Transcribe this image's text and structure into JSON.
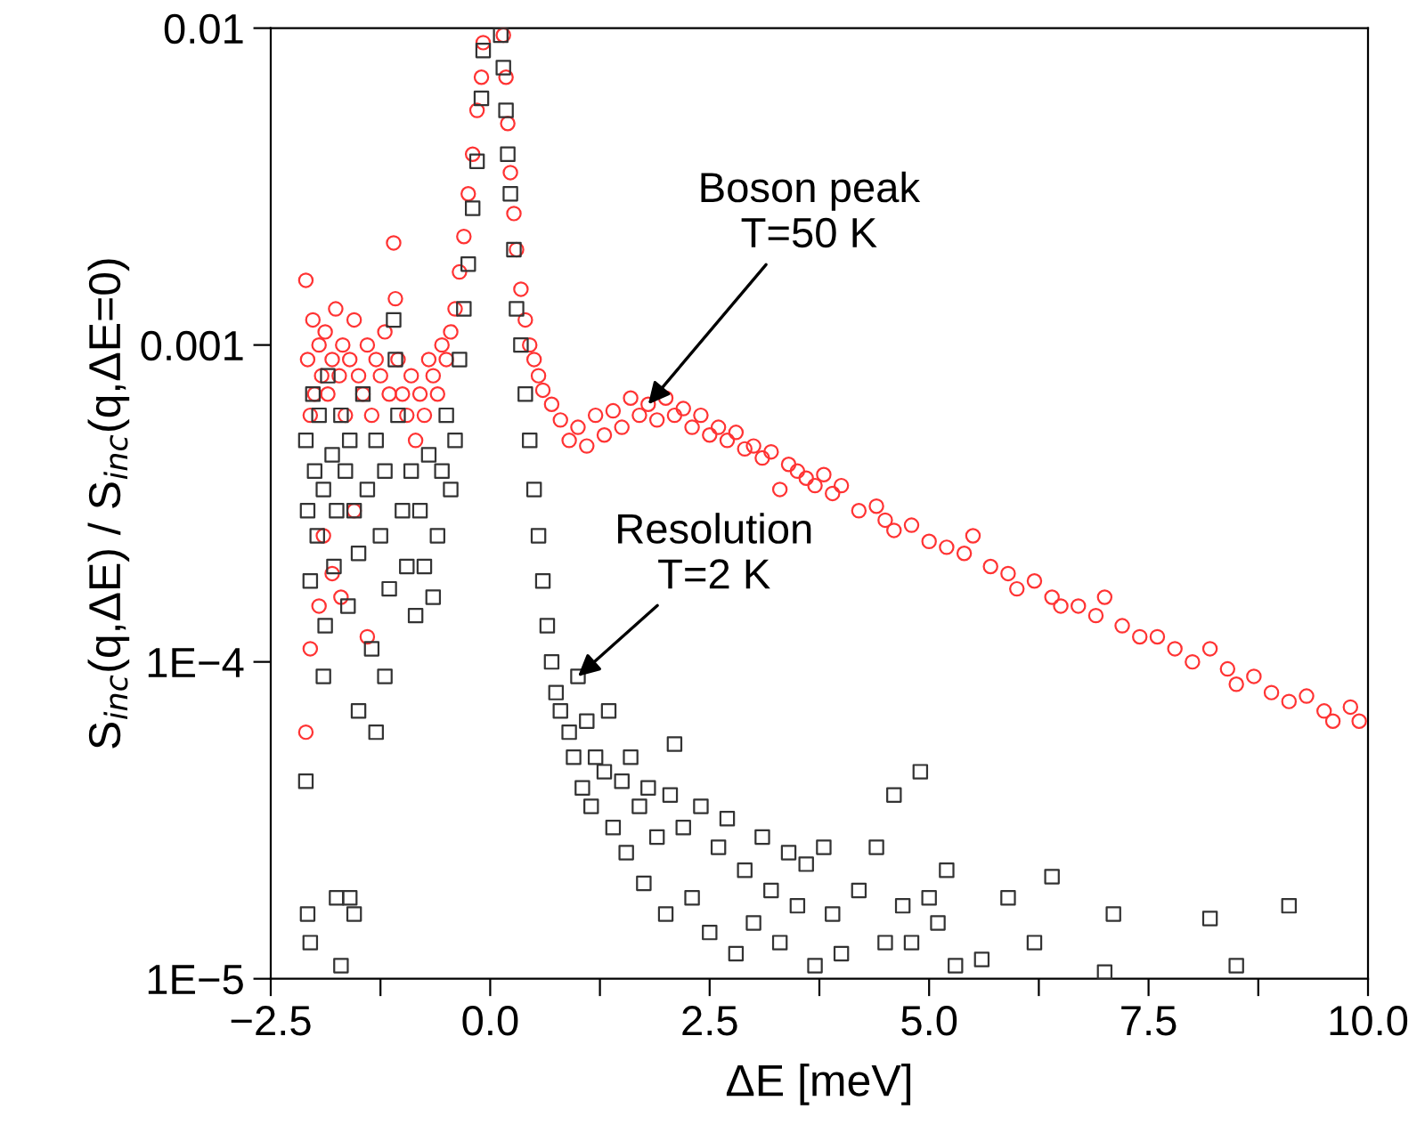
{
  "chart_data": {
    "type": "scatter",
    "xlabel": "ΔE [meV]",
    "ylabel": "S$_{inc}$(q,ΔE) / S$_{inc}$(q,ΔE=0)",
    "log": "y",
    "xlim": [
      -2.5,
      10.0
    ],
    "ylim": [
      1e-05,
      0.01
    ],
    "xticks": [
      {
        "value": -2.5,
        "label": "−2.5"
      },
      {
        "value": -1.25,
        "label": null
      },
      {
        "value": 0.0,
        "label": "0.0"
      },
      {
        "value": 1.25,
        "label": null
      },
      {
        "value": 2.5,
        "label": "2.5"
      },
      {
        "value": 3.75,
        "label": null
      },
      {
        "value": 5.0,
        "label": "5.0"
      },
      {
        "value": 6.25,
        "label": null
      },
      {
        "value": 7.5,
        "label": "7.5"
      },
      {
        "value": 8.75,
        "label": null
      },
      {
        "value": 10.0,
        "label": "10.0"
      }
    ],
    "yticks": [
      {
        "value": 1e-05,
        "label": "1E−5"
      },
      {
        "value": 0.0001,
        "label": "1E−4"
      },
      {
        "value": 0.001,
        "label": "0.001"
      },
      {
        "value": 0.01,
        "label": "0.01"
      }
    ],
    "grid": false,
    "legend": false,
    "annotations": [
      {
        "text": "Boson peak\nT=50 K",
        "x": 1.8,
        "y": 0.00065
      },
      {
        "text": "Resolution\nT=2 K",
        "x": 1.0,
        "y": 9e-05
      }
    ],
    "series": [
      {
        "color": "#ff3333",
        "marker": "circle",
        "x": [
          -2.1,
          -2.08,
          -2.05,
          -2.02,
          -2.0,
          -1.95,
          -1.92,
          -1.88,
          -1.85,
          -1.8,
          -1.76,
          -1.72,
          -1.68,
          -1.65,
          -1.6,
          -1.55,
          -1.5,
          -1.45,
          -1.4,
          -1.35,
          -1.3,
          -1.25,
          -1.2,
          -1.15,
          -1.1,
          -1.08,
          -1.05,
          -1.0,
          -0.95,
          -0.9,
          -0.85,
          -0.8,
          -0.75,
          -0.7,
          -0.65,
          -0.6,
          -0.55,
          -0.5,
          -0.45,
          -0.4,
          -2.1,
          -2.05,
          -1.95,
          -1.9,
          -1.8,
          -1.7,
          -1.55,
          -1.4,
          -0.35,
          -0.3,
          -0.25,
          -0.2,
          -0.15,
          -0.1,
          -0.08,
          0.15,
          0.18,
          0.2,
          0.23,
          0.27,
          0.3,
          0.35,
          0.4,
          0.45,
          0.5,
          0.55,
          0.6,
          0.7,
          0.8,
          0.9,
          1.0,
          1.1,
          1.2,
          1.3,
          1.4,
          1.5,
          1.6,
          1.7,
          1.8,
          1.9,
          2.0,
          2.1,
          2.2,
          2.3,
          2.4,
          2.5,
          2.6,
          2.7,
          2.8,
          2.9,
          3.0,
          3.1,
          3.2,
          3.3,
          3.4,
          3.5,
          3.6,
          3.7,
          3.8,
          3.9,
          4.0,
          4.2,
          4.4,
          4.5,
          4.6,
          4.8,
          5.0,
          5.2,
          5.4,
          5.5,
          5.7,
          5.9,
          6.0,
          6.2,
          6.4,
          6.5,
          6.7,
          6.9,
          7.0,
          7.2,
          7.4,
          7.6,
          7.8,
          8.0,
          8.2,
          8.4,
          8.5,
          8.7,
          8.9,
          9.1,
          9.3,
          9.5,
          9.6,
          9.8,
          9.9
        ],
        "values": [
          0.0016,
          0.0009,
          0.0006,
          0.0012,
          0.0007,
          0.001,
          0.0008,
          0.0011,
          0.0007,
          0.0009,
          0.0013,
          0.0008,
          0.001,
          0.0006,
          0.0009,
          0.0012,
          0.0008,
          0.0007,
          0.001,
          0.0006,
          0.0009,
          0.0008,
          0.0011,
          0.0007,
          0.0021,
          0.0014,
          0.0009,
          0.0007,
          0.0006,
          0.0008,
          0.0005,
          0.0007,
          0.0006,
          0.0009,
          0.0008,
          0.0007,
          0.001,
          0.0009,
          0.0011,
          0.0013,
          6e-05,
          0.00011,
          0.00015,
          0.00025,
          0.00019,
          0.00016,
          0.0003,
          0.00012,
          0.0017,
          0.0022,
          0.003,
          0.004,
          0.0055,
          0.007,
          0.009,
          0.0095,
          0.007,
          0.005,
          0.0035,
          0.0026,
          0.002,
          0.0015,
          0.0012,
          0.001,
          0.0009,
          0.0008,
          0.00072,
          0.00065,
          0.00058,
          0.0005,
          0.00055,
          0.00048,
          0.0006,
          0.00052,
          0.00062,
          0.00055,
          0.00068,
          0.0006,
          0.00065,
          0.00058,
          0.00068,
          0.0006,
          0.00063,
          0.00055,
          0.0006,
          0.00052,
          0.00055,
          0.0005,
          0.00053,
          0.00047,
          0.00048,
          0.00044,
          0.00046,
          0.00035,
          0.00042,
          0.0004,
          0.00038,
          0.00036,
          0.00039,
          0.00034,
          0.00036,
          0.0003,
          0.00031,
          0.00028,
          0.00026,
          0.00027,
          0.00024,
          0.00023,
          0.00022,
          0.00025,
          0.0002,
          0.00019,
          0.00017,
          0.00018,
          0.00016,
          0.00015,
          0.00015,
          0.00014,
          0.00016,
          0.00013,
          0.00012,
          0.00012,
          0.00011,
          0.0001,
          0.00011,
          9.5e-05,
          8.5e-05,
          9e-05,
          8e-05,
          7.5e-05,
          7.8e-05,
          7e-05,
          6.5e-05,
          7.2e-05,
          6.5e-05
        ]
      },
      {
        "color": "#333333",
        "marker": "square",
        "x": [
          -2.1,
          -2.08,
          -2.05,
          -2.02,
          -2.0,
          -1.97,
          -1.95,
          -1.9,
          -1.88,
          -1.85,
          -1.8,
          -1.78,
          -1.75,
          -1.7,
          -1.65,
          -1.62,
          -1.6,
          -1.55,
          -1.5,
          -1.45,
          -1.4,
          -1.35,
          -1.3,
          -1.25,
          -1.2,
          -1.15,
          -1.1,
          -1.08,
          -1.05,
          -1.0,
          -0.95,
          -0.9,
          -0.85,
          -0.8,
          -0.75,
          -0.7,
          -0.65,
          -0.6,
          -0.55,
          -0.5,
          -0.45,
          -0.4,
          -2.1,
          -2.08,
          -2.05,
          -1.75,
          -1.6,
          -1.55,
          -1.7,
          -1.5,
          -1.9,
          -1.3,
          -1.2,
          -0.35,
          -0.3,
          -0.25,
          -0.2,
          -0.15,
          -0.1,
          -0.08,
          0.12,
          0.15,
          0.18,
          0.2,
          0.23,
          0.27,
          0.3,
          0.35,
          0.4,
          0.45,
          0.5,
          0.55,
          0.6,
          0.65,
          0.7,
          0.75,
          0.8,
          0.9,
          0.95,
          1.0,
          1.05,
          1.1,
          1.15,
          1.2,
          1.3,
          1.35,
          1.4,
          1.5,
          1.55,
          1.6,
          1.7,
          1.75,
          1.8,
          1.9,
          2.0,
          2.05,
          2.1,
          2.2,
          2.3,
          2.4,
          2.5,
          2.6,
          2.7,
          2.8,
          2.9,
          3.0,
          3.1,
          3.2,
          3.3,
          3.4,
          3.5,
          3.6,
          3.7,
          3.8,
          3.9,
          4.0,
          4.2,
          4.4,
          4.5,
          4.6,
          4.7,
          4.8,
          4.9,
          5.0,
          5.1,
          5.2,
          5.3,
          5.6,
          5.9,
          6.2,
          6.4,
          7.0,
          7.1,
          8.2,
          8.5,
          9.1
        ],
        "values": [
          0.0005,
          0.0003,
          0.00018,
          0.0007,
          0.0004,
          0.00025,
          0.0006,
          0.00035,
          0.00013,
          0.0008,
          0.00045,
          0.0002,
          0.0003,
          0.0006,
          0.0004,
          0.00015,
          0.0005,
          0.0003,
          0.00022,
          0.0007,
          0.00035,
          0.00011,
          0.0005,
          0.00025,
          0.0004,
          0.00017,
          0.0012,
          0.0009,
          0.0006,
          0.0003,
          0.0002,
          0.0004,
          0.00014,
          0.0003,
          0.0002,
          0.00045,
          0.00016,
          0.00025,
          0.0004,
          0.0006,
          0.00035,
          0.0005,
          4.2e-05,
          1.6e-05,
          1.3e-05,
          1.8e-05,
          1.8e-05,
          1.6e-05,
          1.1e-05,
          7e-05,
          9e-05,
          6e-05,
          9e-05,
          0.0009,
          0.0013,
          0.0018,
          0.0027,
          0.0038,
          0.006,
          0.0085,
          0.0095,
          0.0075,
          0.0055,
          0.004,
          0.003,
          0.002,
          0.0013,
          0.001,
          0.0007,
          0.0005,
          0.00035,
          0.00025,
          0.00018,
          0.00013,
          0.0001,
          8e-05,
          7e-05,
          6e-05,
          5e-05,
          9e-05,
          4e-05,
          6.5e-05,
          3.5e-05,
          5e-05,
          4.5e-05,
          7e-05,
          3e-05,
          4.2e-05,
          2.5e-05,
          5e-05,
          3.5e-05,
          2e-05,
          4e-05,
          2.8e-05,
          1.6e-05,
          3.8e-05,
          5.5e-05,
          3e-05,
          1.8e-05,
          3.5e-05,
          1.4e-05,
          2.6e-05,
          3.2e-05,
          1.2e-05,
          2.2e-05,
          1.5e-05,
          2.8e-05,
          1.9e-05,
          1.3e-05,
          2.5e-05,
          1.7e-05,
          2.3e-05,
          1.1e-05,
          2.6e-05,
          1.6e-05,
          1.2e-05,
          1.9e-05,
          2.6e-05,
          1.3e-05,
          3.8e-05,
          1.7e-05,
          1.3e-05,
          4.5e-05,
          1.8e-05,
          1.5e-05,
          2.2e-05,
          1.1e-05,
          1.15e-05,
          1.8e-05,
          1.3e-05,
          2.1e-05,
          1.05e-05,
          1.6e-05,
          1.55e-05,
          1.1e-05,
          1.7e-05
        ]
      }
    ]
  }
}
